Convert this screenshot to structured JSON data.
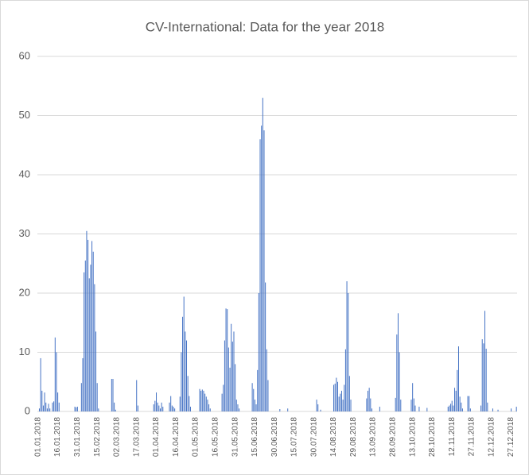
{
  "chart_data": {
    "type": "bar",
    "title": "CV-International: Data for the year 2018",
    "categories": [
      "01.01.2018",
      null,
      null,
      null,
      null,
      null,
      null,
      null,
      null,
      null,
      null,
      null,
      null,
      null,
      null,
      "16.01.2018",
      null,
      null,
      null,
      null,
      null,
      null,
      null,
      null,
      null,
      null,
      null,
      null,
      null,
      null,
      "31.01.2018",
      null,
      null,
      null,
      null,
      null,
      null,
      null,
      null,
      null,
      null,
      null,
      null,
      null,
      null,
      "15.02.2018",
      null,
      null,
      null,
      null,
      null,
      null,
      null,
      null,
      null,
      null,
      null,
      null,
      null,
      null,
      "02.03.2018",
      null,
      null,
      null,
      null,
      null,
      null,
      null,
      null,
      null,
      null,
      null,
      null,
      null,
      null,
      "17.03.2018",
      null,
      null,
      null,
      null,
      null,
      null,
      null,
      null,
      null,
      null,
      null,
      null,
      null,
      null,
      "01.04.2018",
      null,
      null,
      null,
      null,
      null,
      null,
      null,
      null,
      null,
      null,
      null,
      null,
      null,
      null,
      "16.04.2018",
      null,
      null,
      null,
      null,
      null,
      null,
      null,
      null,
      null,
      null,
      null,
      null,
      null,
      null,
      "01.05.2018",
      null,
      null,
      null,
      null,
      null,
      null,
      null,
      null,
      null,
      null,
      null,
      null,
      null,
      null,
      "16.05.2018",
      null,
      null,
      null,
      null,
      null,
      null,
      null,
      null,
      null,
      null,
      null,
      null,
      null,
      null,
      "31.05.2018",
      null,
      null,
      null,
      null,
      null,
      null,
      null,
      null,
      null,
      null,
      null,
      null,
      null,
      null,
      "15.06.2018",
      null,
      null,
      null,
      null,
      null,
      null,
      null,
      null,
      null,
      null,
      null,
      null,
      null,
      null,
      "30.06.2018",
      null,
      null,
      null,
      null,
      null,
      null,
      null,
      null,
      null,
      null,
      null,
      null,
      null,
      null,
      "15.07.2018",
      null,
      null,
      null,
      null,
      null,
      null,
      null,
      null,
      null,
      null,
      null,
      null,
      null,
      null,
      "30.07.2018",
      null,
      null,
      null,
      null,
      null,
      null,
      null,
      null,
      null,
      null,
      null,
      null,
      null,
      null,
      "14.08.2018",
      null,
      null,
      null,
      null,
      null,
      null,
      null,
      null,
      null,
      null,
      null,
      null,
      null,
      null,
      "29.08.2018",
      null,
      null,
      null,
      null,
      null,
      null,
      null,
      null,
      null,
      null,
      null,
      null,
      null,
      null,
      "13.09.2018",
      null,
      null,
      null,
      null,
      null,
      null,
      null,
      null,
      null,
      null,
      null,
      null,
      null,
      null,
      "28.09.2018",
      null,
      null,
      null,
      null,
      null,
      null,
      null,
      null,
      null,
      null,
      null,
      null,
      null,
      null,
      "13.10.2018",
      null,
      null,
      null,
      null,
      null,
      null,
      null,
      null,
      null,
      null,
      null,
      null,
      null,
      null,
      "28.10.2018",
      null,
      null,
      null,
      null,
      null,
      null,
      null,
      null,
      null,
      null,
      null,
      null,
      null,
      null,
      "12.11.2018",
      null,
      null,
      null,
      null,
      null,
      null,
      null,
      null,
      null,
      null,
      null,
      null,
      null,
      null,
      "27.11.2018",
      null,
      null,
      null,
      null,
      null,
      null,
      null,
      null,
      null,
      null,
      null,
      null,
      null,
      null,
      "12.12.2018",
      null,
      null,
      null,
      null,
      null,
      null,
      null,
      null,
      null,
      null,
      null,
      null,
      null,
      null,
      "27.12.2018",
      null,
      null,
      null,
      null
    ],
    "values": [
      0,
      0.5,
      9,
      3.5,
      1,
      3.2,
      1.5,
      0.5,
      1.3,
      0.5,
      0,
      1.5,
      1.7,
      12.5,
      10,
      3.2,
      1.5,
      0,
      0,
      0,
      0,
      0,
      0,
      0,
      0,
      0,
      0,
      0,
      0.8,
      0.7,
      0.8,
      0,
      0,
      4.8,
      9,
      23.5,
      25.5,
      30.5,
      29,
      22.5,
      24.8,
      28.8,
      27,
      21.5,
      13.5,
      4.8,
      0.5,
      0,
      0,
      0,
      0,
      0,
      0,
      0,
      0,
      0,
      5.5,
      5.5,
      1.5,
      0.3,
      0,
      0,
      0,
      0,
      0,
      0,
      0,
      0,
      0,
      0,
      0,
      0,
      0,
      0,
      0,
      5.3,
      1,
      0,
      0,
      0,
      0,
      0,
      0,
      0,
      0,
      0,
      0,
      0,
      1.2,
      1.8,
      3.2,
      1.5,
      1,
      0.5,
      1.5,
      0.8,
      0,
      0,
      0,
      0,
      1.5,
      2.6,
      1,
      0.8,
      0.5,
      0,
      0,
      0,
      2.5,
      10,
      16,
      19.4,
      13.5,
      12,
      6,
      2.6,
      0.8,
      0,
      0,
      0,
      0,
      0,
      0,
      3.8,
      3.5,
      3.7,
      3.5,
      3,
      2.5,
      2,
      1.2,
      0.5,
      0,
      0,
      0,
      0,
      0,
      0,
      0,
      0,
      3,
      4.5,
      12,
      17.4,
      17.3,
      10.8,
      7.4,
      14.8,
      11.8,
      13.5,
      8,
      2,
      1.2,
      0.5,
      0,
      0,
      0,
      0,
      0,
      0,
      0,
      0,
      0,
      4.8,
      3.8,
      2,
      1.2,
      7,
      20,
      46,
      48.3,
      53,
      47.5,
      21.8,
      10.5,
      5.3,
      0,
      0,
      0,
      0,
      0,
      0,
      0,
      0,
      0.4,
      0,
      0,
      0,
      0,
      0,
      0.5,
      0,
      0,
      0,
      0,
      0,
      0,
      0,
      0,
      0,
      0,
      0,
      0,
      0,
      0,
      0,
      0,
      0,
      0,
      0,
      0,
      0,
      2,
      1.2,
      0,
      0.3,
      0,
      0,
      0,
      0,
      0,
      0,
      0,
      0,
      0,
      4.5,
      4.7,
      5.7,
      5,
      2.5,
      3,
      3.5,
      2,
      4.5,
      10.5,
      22,
      20,
      6,
      2,
      0,
      0,
      0,
      0,
      0,
      0,
      0,
      0,
      0,
      0,
      0,
      2.2,
      3.5,
      4,
      2.2,
      0.5,
      0,
      0,
      0,
      0,
      0,
      0.8,
      0,
      0,
      0,
      0,
      0,
      0,
      0,
      0,
      0,
      0,
      0,
      2.3,
      13,
      16.6,
      10,
      2,
      0,
      0,
      0,
      0,
      0,
      0,
      0,
      2,
      4.8,
      2.2,
      1,
      0,
      0,
      0.8,
      0,
      0,
      0,
      0,
      0,
      0.6,
      0,
      0,
      0,
      0,
      0,
      0,
      0,
      0,
      0,
      0,
      0,
      0,
      0,
      0,
      0,
      0.8,
      1,
      1.3,
      1.8,
      1,
      4,
      3.5,
      7,
      11,
      2.5,
      1.5,
      0.5,
      0,
      0,
      0,
      2.6,
      2.6,
      0.5,
      0,
      0,
      0,
      0,
      0,
      0,
      0,
      1,
      12.2,
      11.5,
      17,
      10.6,
      1.5,
      0,
      0,
      0,
      0.5,
      0,
      0,
      0,
      0.3,
      0,
      0,
      0,
      0,
      0,
      0,
      0,
      0,
      0,
      0.5,
      0,
      0,
      0,
      0.8
    ],
    "color": "#4472c4",
    "ylim": [
      0,
      60
    ],
    "yticks": [
      0,
      10,
      20,
      30,
      40,
      50,
      60
    ],
    "grid": true
  }
}
